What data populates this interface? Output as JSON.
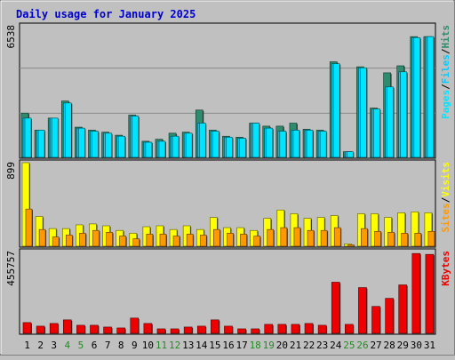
{
  "colors": {
    "background": "#c0c0c0",
    "title": "#0000cc",
    "hits": "#2e8b6e",
    "files": "#00ccff",
    "pages": "#00e5ff",
    "visits": "#ffff00",
    "sites": "#ff9900",
    "kbytes": "#ee0000",
    "weekend_label": "#228b22",
    "weekday_label": "#000000",
    "grid": "#8a8a8a"
  },
  "chart_data": {
    "type": "bar",
    "title": "Daily usage for January 2025",
    "categories": [
      "1",
      "2",
      "3",
      "4",
      "5",
      "6",
      "7",
      "8",
      "9",
      "10",
      "11",
      "12",
      "13",
      "14",
      "15",
      "16",
      "17",
      "18",
      "19",
      "20",
      "21",
      "22",
      "23",
      "24",
      "25",
      "26",
      "27",
      "28",
      "29",
      "30",
      "31"
    ],
    "weekend_days": [
      "4",
      "5",
      "11",
      "12",
      "18",
      "19",
      "25",
      "26"
    ],
    "panels": [
      {
        "id": "top",
        "max_label": "6538",
        "ylim": [
          0,
          6538
        ],
        "legend": [
          "Pages",
          "Files",
          "Hits"
        ],
        "series": [
          {
            "name": "Hits",
            "values": [
              2200,
              1350,
              1950,
              2800,
              1500,
              1350,
              1250,
              1100,
              2100,
              800,
              900,
              1200,
              1250,
              2350,
              1350,
              1050,
              1000,
              1700,
              1550,
              1550,
              1700,
              1400,
              1350,
              4750,
              280,
              4500,
              2450,
              4200,
              4550,
              6000,
              6000
            ]
          },
          {
            "name": "Files",
            "values": [
              1950,
              1350,
              1950,
              2700,
              1450,
              1300,
              1200,
              1050,
              2050,
              750,
              800,
              1050,
              1200,
              1700,
              1300,
              1000,
              950,
              1700,
              1450,
              1300,
              1350,
              1350,
              1300,
              4650,
              280,
              4450,
              2400,
              3500,
              4250,
              5950,
              6000
            ]
          },
          {
            "name": "Pages",
            "values": [
              1950,
              1350,
              1950,
              2700,
              1450,
              1300,
              1200,
              1050,
              2050,
              750,
              800,
              1050,
              1200,
              1700,
              1300,
              1000,
              950,
              1700,
              1450,
              1300,
              1350,
              1350,
              1300,
              4650,
              280,
              4450,
              2400,
              3500,
              4250,
              5950,
              6000
            ]
          }
        ]
      },
      {
        "id": "middle",
        "max_label": "899",
        "ylim": [
          0,
          899
        ],
        "legend": [
          "Sites",
          "Visits"
        ],
        "series": [
          {
            "name": "Visits",
            "values": [
              899,
              320,
              190,
              190,
              230,
              240,
              220,
              170,
              140,
              210,
              220,
              180,
              220,
              180,
              310,
              200,
              200,
              170,
              300,
              390,
              350,
              300,
              310,
              330,
              25,
              350,
              350,
              310,
              360,
              370,
              360
            ]
          },
          {
            "name": "Sites",
            "values": [
              400,
              180,
              100,
              120,
              140,
              170,
              150,
              110,
              80,
              130,
              130,
              110,
              130,
              120,
              180,
              140,
              130,
              110,
              180,
              200,
              200,
              170,
              170,
              200,
              15,
              190,
              160,
              150,
              140,
              140,
              160
            ]
          }
        ]
      },
      {
        "id": "bottom",
        "max_label": "455757",
        "ylim": [
          0,
          455757
        ],
        "legend": [
          "KBytes"
        ],
        "series": [
          {
            "name": "KBytes",
            "values": [
              60000,
              40000,
              55000,
              75000,
              45000,
              45000,
              35000,
              30000,
              85000,
              55000,
              25000,
              25000,
              35000,
              40000,
              75000,
              40000,
              25000,
              25000,
              50000,
              50000,
              50000,
              55000,
              45000,
              285000,
              50000,
              255000,
              150000,
              195000,
              270000,
              445000,
              440000
            ]
          }
        ]
      }
    ]
  }
}
